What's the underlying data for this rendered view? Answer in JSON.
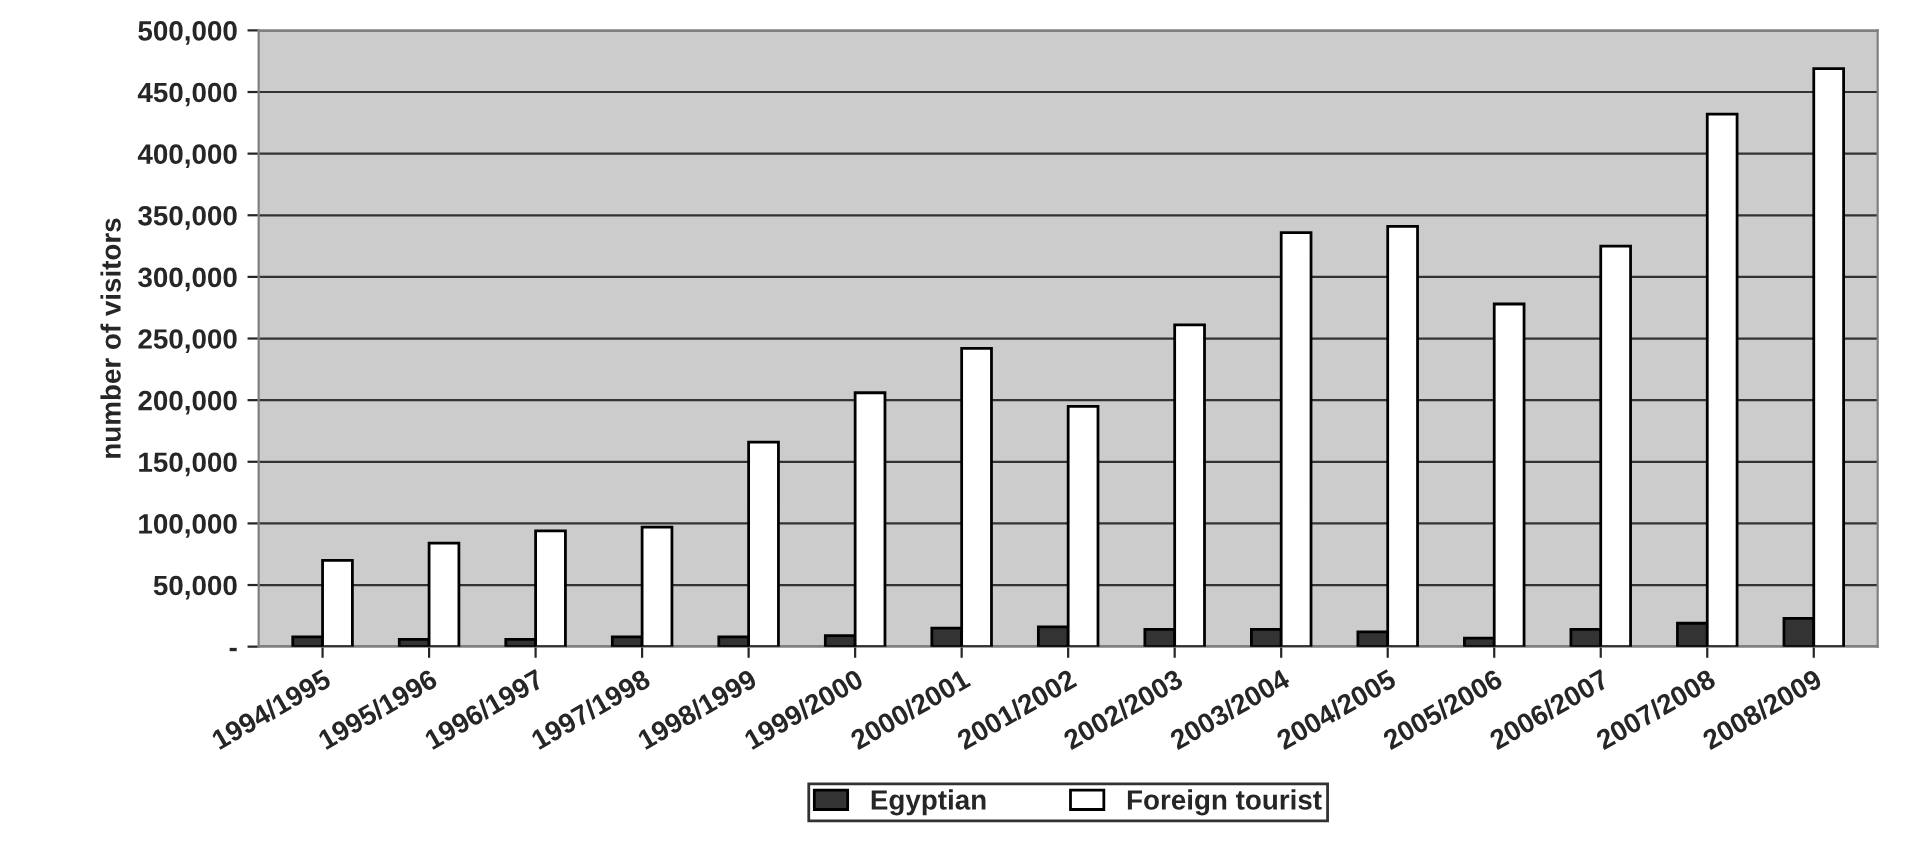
{
  "chart_data": {
    "type": "bar",
    "ylabel": "number of visitors",
    "categories": [
      "1994/1995",
      "1995/1996",
      "1996/1997",
      "1997/1998",
      "1998/1999",
      "1999/2000",
      "2000/2001",
      "2001/2002",
      "2002/2003",
      "2003/2004",
      "2004/2005",
      "2005/2006",
      "2006/2007",
      "2007/2008",
      "2008/2009"
    ],
    "series": [
      {
        "name": "Egyptian",
        "color": "#333333",
        "values": [
          8000,
          6000,
          6000,
          8000,
          8000,
          9000,
          15000,
          16000,
          14000,
          14000,
          12000,
          7000,
          14000,
          19000,
          23000
        ]
      },
      {
        "name": "Foreign tourist",
        "color": "#ffffff",
        "values": [
          70000,
          84000,
          94000,
          97000,
          166000,
          206000,
          242000,
          195000,
          261000,
          336000,
          341000,
          278000,
          325000,
          432000,
          469000
        ]
      }
    ],
    "ylim": [
      0,
      500000
    ],
    "yticks": [
      {
        "value": 0,
        "label": "-"
      },
      {
        "value": 50000,
        "label": "50,000"
      },
      {
        "value": 100000,
        "label": "100,000"
      },
      {
        "value": 150000,
        "label": "150,000"
      },
      {
        "value": 200000,
        "label": "200,000"
      },
      {
        "value": 250000,
        "label": "250,000"
      },
      {
        "value": 300000,
        "label": "300,000"
      },
      {
        "value": 350000,
        "label": "350,000"
      },
      {
        "value": 400000,
        "label": "400,000"
      },
      {
        "value": 450000,
        "label": "450,000"
      },
      {
        "value": 500000,
        "label": "500,000"
      }
    ],
    "grid": "y",
    "legend": "bottom"
  }
}
